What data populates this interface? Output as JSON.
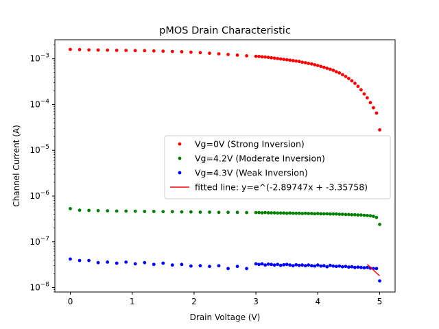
{
  "chart_data": {
    "type": "scatter",
    "title": "pMOS Drain Characteristic",
    "xlabel": "Drain Voltage (V)",
    "ylabel": "Channel Current (A)",
    "xlim": [
      -0.25,
      5.25
    ],
    "ylim": [
      8e-09,
      0.0026
    ],
    "yscale": "log",
    "grid": false,
    "legend_position": "center-right",
    "x_ticks": [
      0,
      1,
      2,
      3,
      4,
      5
    ],
    "y_ticks": [
      1e-08,
      1e-07,
      1e-06,
      1e-05,
      0.0001,
      0.001
    ],
    "series": [
      {
        "name": "Vg=0V (Strong Inversion)",
        "kind": "points",
        "color": "#ff0000",
        "x": [
          0.0,
          0.15,
          0.3,
          0.45,
          0.6,
          0.75,
          0.9,
          1.05,
          1.2,
          1.35,
          1.5,
          1.65,
          1.8,
          1.95,
          2.1,
          2.25,
          2.4,
          2.55,
          2.7,
          2.85,
          3.0,
          3.05,
          3.1,
          3.15,
          3.2,
          3.25,
          3.3,
          3.35,
          3.4,
          3.45,
          3.5,
          3.55,
          3.6,
          3.65,
          3.7,
          3.75,
          3.8,
          3.85,
          3.9,
          3.95,
          4.0,
          4.05,
          4.1,
          4.15,
          4.2,
          4.25,
          4.3,
          4.35,
          4.4,
          4.45,
          4.5,
          4.55,
          4.6,
          4.65,
          4.7,
          4.75,
          4.8,
          4.85,
          4.9,
          4.95,
          5.0
        ],
        "y": [
          0.0016,
          0.00158,
          0.00156,
          0.00155,
          0.00154,
          0.00153,
          0.00152,
          0.00151,
          0.0015,
          0.00148,
          0.00146,
          0.00144,
          0.00142,
          0.00139,
          0.00136,
          0.00132,
          0.00128,
          0.00124,
          0.0012,
          0.00116,
          0.00113,
          0.00112,
          0.0011,
          0.00109,
          0.00107,
          0.00105,
          0.00103,
          0.00101,
          0.00099,
          0.00097,
          0.00095,
          0.00093,
          0.00091,
          0.00089,
          0.00087,
          0.00084,
          0.00082,
          0.00079,
          0.00077,
          0.00074,
          0.00071,
          0.00068,
          0.00065,
          0.00062,
          0.00059,
          0.00056,
          0.00052,
          0.00049,
          0.00045,
          0.00041,
          0.00037,
          0.00033,
          0.00029,
          0.00025,
          0.00021,
          0.00017,
          0.00014,
          0.00011,
          8.5e-05,
          6.5e-05,
          2.8e-05
        ]
      },
      {
        "name": "Vg=4.2V (Moderate Inversion)",
        "kind": "points",
        "color": "#008000",
        "x": [
          0.0,
          0.15,
          0.3,
          0.45,
          0.6,
          0.75,
          0.9,
          1.05,
          1.2,
          1.35,
          1.5,
          1.65,
          1.8,
          1.95,
          2.1,
          2.25,
          2.4,
          2.55,
          2.7,
          2.85,
          3.0,
          3.05,
          3.1,
          3.15,
          3.2,
          3.25,
          3.3,
          3.35,
          3.4,
          3.45,
          3.5,
          3.55,
          3.6,
          3.65,
          3.7,
          3.75,
          3.8,
          3.85,
          3.9,
          3.95,
          4.0,
          4.05,
          4.1,
          4.15,
          4.2,
          4.25,
          4.3,
          4.35,
          4.4,
          4.45,
          4.5,
          4.55,
          4.6,
          4.65,
          4.7,
          4.75,
          4.8,
          4.85,
          4.9,
          4.95,
          5.0
        ],
        "y": [
          5.3e-07,
          4.9e-07,
          4.85e-07,
          4.8e-07,
          4.75e-07,
          4.7e-07,
          4.7e-07,
          4.65e-07,
          4.6e-07,
          4.6e-07,
          4.55e-07,
          4.55e-07,
          4.5e-07,
          4.5e-07,
          4.45e-07,
          4.45e-07,
          4.4e-07,
          4.4e-07,
          4.4e-07,
          4.35e-07,
          4.35e-07,
          4.35e-07,
          4.3e-07,
          4.35e-07,
          4.3e-07,
          4.3e-07,
          4.3e-07,
          4.25e-07,
          4.25e-07,
          4.25e-07,
          4.2e-07,
          4.25e-07,
          4.2e-07,
          4.2e-07,
          4.2e-07,
          4.15e-07,
          4.2e-07,
          4.15e-07,
          4.15e-07,
          4.1e-07,
          4.15e-07,
          4.1e-07,
          4.1e-07,
          4.1e-07,
          4.05e-07,
          4.05e-07,
          4.05e-07,
          4e-07,
          4e-07,
          3.95e-07,
          3.95e-07,
          3.9e-07,
          3.9e-07,
          3.85e-07,
          3.85e-07,
          3.8e-07,
          3.75e-07,
          3.7e-07,
          3.6e-07,
          3.4e-07,
          2.4e-07
        ]
      },
      {
        "name": "Vg=4.3V (Weak Inversion)",
        "kind": "points",
        "color": "#0000ff",
        "x": [
          0.0,
          0.15,
          0.3,
          0.45,
          0.6,
          0.75,
          0.9,
          1.05,
          1.2,
          1.35,
          1.5,
          1.65,
          1.8,
          1.95,
          2.1,
          2.25,
          2.4,
          2.55,
          2.7,
          2.85,
          3.0,
          3.05,
          3.1,
          3.15,
          3.2,
          3.25,
          3.3,
          3.35,
          3.4,
          3.45,
          3.5,
          3.55,
          3.6,
          3.65,
          3.7,
          3.75,
          3.8,
          3.85,
          3.9,
          3.95,
          4.0,
          4.05,
          4.1,
          4.15,
          4.2,
          4.25,
          4.3,
          4.35,
          4.4,
          4.45,
          4.5,
          4.55,
          4.6,
          4.65,
          4.7,
          4.75,
          4.8,
          4.85,
          4.9,
          4.95,
          5.0
        ],
        "y": [
          4.2e-08,
          3.9e-08,
          3.9e-08,
          3.5e-08,
          3.6e-08,
          3.4e-08,
          3.6e-08,
          3.3e-08,
          3.5e-08,
          3.2e-08,
          3.4e-08,
          3.1e-08,
          3.2e-08,
          2.95e-08,
          3e-08,
          2.9e-08,
          3e-08,
          2.6e-08,
          2.9e-08,
          2.6e-08,
          3.3e-08,
          3.2e-08,
          3.3e-08,
          3.1e-08,
          3.25e-08,
          3.2e-08,
          3.1e-08,
          3.2e-08,
          3.05e-08,
          3.15e-08,
          3.2e-08,
          3.1e-08,
          3e-08,
          3.15e-08,
          3.05e-08,
          3.1e-08,
          3e-08,
          3.1e-08,
          3e-08,
          2.95e-08,
          3.1e-08,
          2.95e-08,
          3e-08,
          2.85e-08,
          3.05e-08,
          2.95e-08,
          2.9e-08,
          2.95e-08,
          2.85e-08,
          2.9e-08,
          2.8e-08,
          2.85e-08,
          2.75e-08,
          2.8e-08,
          2.75e-08,
          2.7e-08,
          2.75e-08,
          2.65e-08,
          2.6e-08,
          2.6e-08,
          1.4e-08
        ]
      },
      {
        "name": "fitted line: y=e^(-2.89747x + -3.35758)",
        "kind": "line",
        "color": "#ff0000",
        "x": [
          4.8,
          5.0
        ],
        "y": [
          3.2e-08,
          1.8e-08
        ]
      }
    ]
  }
}
